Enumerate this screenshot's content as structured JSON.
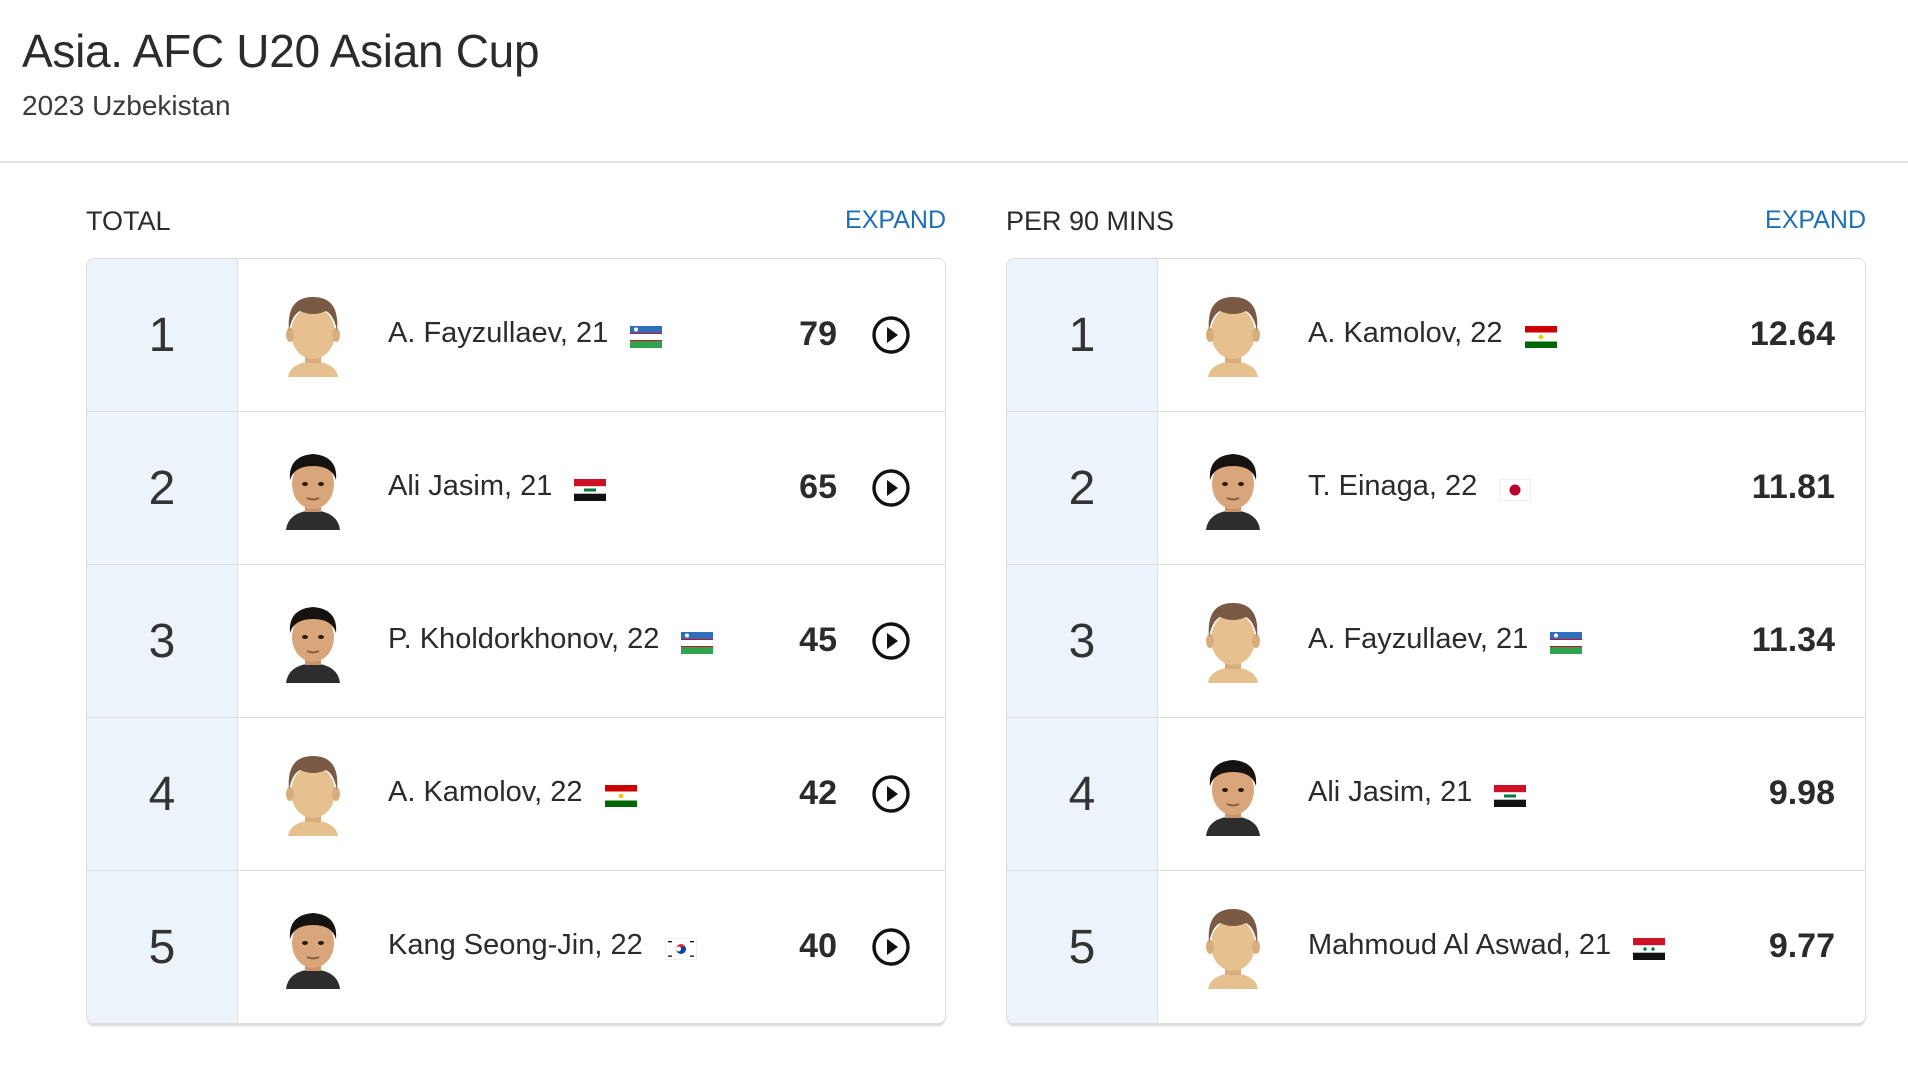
{
  "header": {
    "title": "Asia. AFC U20 Asian Cup",
    "subtitle": "2023 Uzbekistan"
  },
  "total": {
    "label": "TOTAL",
    "expand_label": "EXPAND",
    "rows": [
      {
        "rank": "1",
        "player": "A. Fayzullaev, 21",
        "flag": "uzbekistan-flag",
        "value": "79",
        "avatar": "placeholder"
      },
      {
        "rank": "2",
        "player": "Ali Jasim, 21",
        "flag": "iraq-flag",
        "value": "65",
        "avatar": "photo"
      },
      {
        "rank": "3",
        "player": "P. Kholdorkhonov, 22",
        "flag": "uzbekistan-flag",
        "value": "45",
        "avatar": "photo"
      },
      {
        "rank": "4",
        "player": "A. Kamolov, 22",
        "flag": "tajikistan-flag",
        "value": "42",
        "avatar": "placeholder"
      },
      {
        "rank": "5",
        "player": "Kang Seong-Jin, 22",
        "flag": "south-korea-flag",
        "value": "40",
        "avatar": "photo"
      }
    ]
  },
  "per90": {
    "label": "PER 90 MINS",
    "expand_label": "EXPAND",
    "rows": [
      {
        "rank": "1",
        "player": "A. Kamolov, 22",
        "flag": "tajikistan-flag",
        "value": "12.64",
        "avatar": "placeholder"
      },
      {
        "rank": "2",
        "player": "T. Einaga, 22",
        "flag": "japan-flag",
        "value": "11.81",
        "avatar": "photo"
      },
      {
        "rank": "3",
        "player": "A. Fayzullaev, 21",
        "flag": "uzbekistan-flag",
        "value": "11.34",
        "avatar": "placeholder"
      },
      {
        "rank": "4",
        "player": "Ali Jasim, 21",
        "flag": "iraq-flag",
        "value": "9.98",
        "avatar": "photo"
      },
      {
        "rank": "5",
        "player": "Mahmoud Al Aswad, 21",
        "flag": "syria-flag",
        "value": "9.77",
        "avatar": "placeholder"
      }
    ]
  },
  "colors": {
    "accent": "#1f6fb3",
    "rank_bg": "#ecf3fa",
    "avatar_skin": "#e7c08f",
    "avatar_hair": "#7a5a44"
  }
}
